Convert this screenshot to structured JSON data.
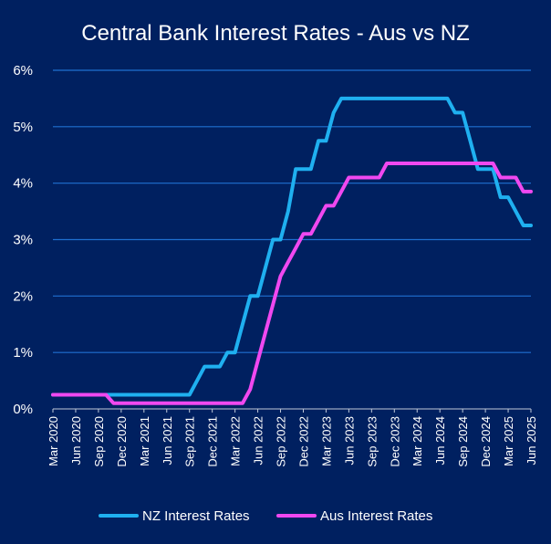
{
  "chart_data": {
    "type": "line",
    "title": "Central Bank Interest Rates - Aus vs NZ",
    "xlabel": "",
    "ylabel": "",
    "ylim": [
      0,
      6
    ],
    "y_ticks": [
      "0%",
      "1%",
      "2%",
      "3%",
      "4%",
      "5%",
      "6%"
    ],
    "x_ticks": [
      "Mar 2020",
      "Jun 2020",
      "Sep 2020",
      "Dec 2020",
      "Mar 2021",
      "Jun 2021",
      "Sep 2021",
      "Dec 2021",
      "Mar 2022",
      "Jun 2022",
      "Sep 2022",
      "Dec 2022",
      "Mar 2023",
      "Jun 2023",
      "Sep 2023",
      "Dec 2023",
      "Mar 2024",
      "Jun 2024",
      "Sep 2024",
      "Dec 2024",
      "Mar 2025",
      "Jun 2025"
    ],
    "x_range": [
      "2020-03",
      "2025-06"
    ],
    "grid": true,
    "legend_position": "bottom",
    "colors": {
      "background": "#002060",
      "grid": "#1f6fd0",
      "nz": "#1fb0f0",
      "aus": "#f048f0"
    },
    "series": [
      {
        "name": "NZ Interest Rates",
        "color": "#1fb0f0",
        "points": [
          [
            "2020-03",
            0.25
          ],
          [
            "2021-09",
            0.25
          ],
          [
            "2021-10",
            0.5
          ],
          [
            "2021-11",
            0.75
          ],
          [
            "2022-01",
            0.75
          ],
          [
            "2022-02",
            1.0
          ],
          [
            "2022-03",
            1.0
          ],
          [
            "2022-04",
            1.5
          ],
          [
            "2022-05",
            2.0
          ],
          [
            "2022-06",
            2.0
          ],
          [
            "2022-07",
            2.5
          ],
          [
            "2022-08",
            3.0
          ],
          [
            "2022-09",
            3.0
          ],
          [
            "2022-10",
            3.5
          ],
          [
            "2022-11",
            4.25
          ],
          [
            "2023-01",
            4.25
          ],
          [
            "2023-02",
            4.75
          ],
          [
            "2023-03",
            4.75
          ],
          [
            "2023-04",
            5.25
          ],
          [
            "2023-05",
            5.5
          ],
          [
            "2024-07",
            5.5
          ],
          [
            "2024-08",
            5.25
          ],
          [
            "2024-09",
            5.25
          ],
          [
            "2024-10",
            4.75
          ],
          [
            "2024-11",
            4.25
          ],
          [
            "2025-01",
            4.25
          ],
          [
            "2025-02",
            3.75
          ],
          [
            "2025-03",
            3.75
          ],
          [
            "2025-04",
            3.5
          ],
          [
            "2025-05",
            3.25
          ],
          [
            "2025-06",
            3.25
          ]
        ]
      },
      {
        "name": "Aus Interest Rates",
        "color": "#f048f0",
        "points": [
          [
            "2020-03",
            0.25
          ],
          [
            "2020-10",
            0.25
          ],
          [
            "2020-11",
            0.1
          ],
          [
            "2022-04",
            0.1
          ],
          [
            "2022-05",
            0.35
          ],
          [
            "2022-06",
            0.85
          ],
          [
            "2022-07",
            1.35
          ],
          [
            "2022-08",
            1.85
          ],
          [
            "2022-09",
            2.35
          ],
          [
            "2022-10",
            2.6
          ],
          [
            "2022-11",
            2.85
          ],
          [
            "2022-12",
            3.1
          ],
          [
            "2023-01",
            3.1
          ],
          [
            "2023-02",
            3.35
          ],
          [
            "2023-03",
            3.6
          ],
          [
            "2023-04",
            3.6
          ],
          [
            "2023-05",
            3.85
          ],
          [
            "2023-06",
            4.1
          ],
          [
            "2023-10",
            4.1
          ],
          [
            "2023-11",
            4.35
          ],
          [
            "2025-01",
            4.35
          ],
          [
            "2025-02",
            4.1
          ],
          [
            "2025-04",
            4.1
          ],
          [
            "2025-05",
            3.85
          ],
          [
            "2025-06",
            3.85
          ]
        ]
      }
    ]
  }
}
